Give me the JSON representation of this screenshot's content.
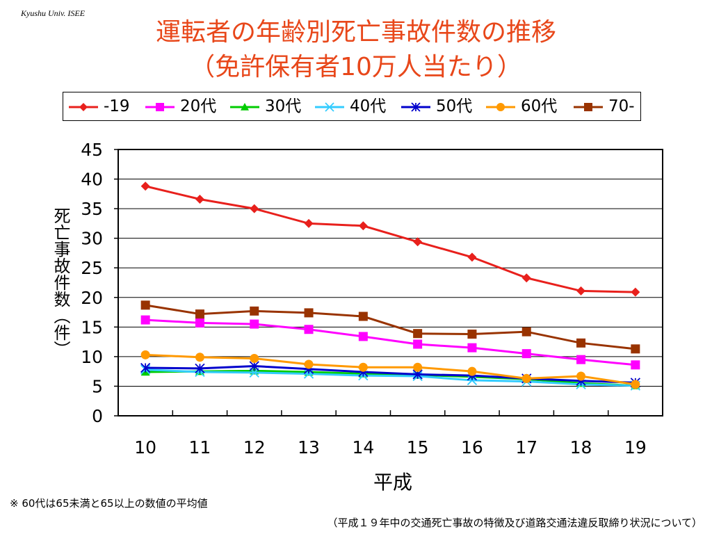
{
  "credit": "Kyushu Univ. ISEE",
  "title_line1": "運転者の年齢別死亡事故件数の推移",
  "title_line2": "（免許保有者10万人当たり）",
  "footnote": "※ 60代は65未満と65以上の数値の平均値",
  "source": "（平成１９年中の交通死亡事故の特徴及び道路交通法違反取締り状況について）",
  "chart_data": {
    "type": "line",
    "title": "運転者の年齢別死亡事故件数の推移（免許保有者10万人当たり）",
    "xlabel": "平成",
    "ylabel": "死亡事故件数（件）",
    "x": [
      "10",
      "11",
      "12",
      "13",
      "14",
      "15",
      "16",
      "17",
      "18",
      "19"
    ],
    "ylim": [
      0,
      45
    ],
    "yticks": [
      "0",
      "5",
      "10",
      "15",
      "20",
      "25",
      "30",
      "35",
      "40",
      "45"
    ],
    "grid": true,
    "legend_position": "top",
    "series": [
      {
        "name": "-19",
        "color": "#e8201c",
        "marker": "diamond",
        "values": [
          38.8,
          36.6,
          35.0,
          32.5,
          32.1,
          29.4,
          26.8,
          23.3,
          21.1,
          20.9
        ]
      },
      {
        "name": "20代",
        "color": "#ff00ff",
        "marker": "square",
        "values": [
          16.2,
          15.7,
          15.5,
          14.6,
          13.4,
          12.1,
          11.5,
          10.5,
          9.5,
          8.6
        ]
      },
      {
        "name": "30代",
        "color": "#00cc00",
        "marker": "triangle",
        "values": [
          7.4,
          7.5,
          7.6,
          7.4,
          7.1,
          6.9,
          6.6,
          6.2,
          5.5,
          5.1
        ]
      },
      {
        "name": "40代",
        "color": "#33ccff",
        "marker": "x",
        "values": [
          7.8,
          7.4,
          7.3,
          7.1,
          6.8,
          6.7,
          6.0,
          5.8,
          5.3,
          5.1
        ]
      },
      {
        "name": "50代",
        "color": "#0000cc",
        "marker": "star",
        "values": [
          8.1,
          8.0,
          8.4,
          7.9,
          7.4,
          7.0,
          6.8,
          6.3,
          5.9,
          5.6
        ]
      },
      {
        "name": "60代",
        "color": "#ff9900",
        "marker": "circle",
        "values": [
          10.3,
          9.9,
          9.7,
          8.7,
          8.2,
          8.2,
          7.5,
          6.3,
          6.7,
          5.3
        ]
      },
      {
        "name": "70-",
        "color": "#993300",
        "marker": "square",
        "values": [
          18.7,
          17.2,
          17.7,
          17.4,
          16.8,
          13.9,
          13.8,
          14.2,
          12.3,
          11.3
        ]
      }
    ]
  }
}
